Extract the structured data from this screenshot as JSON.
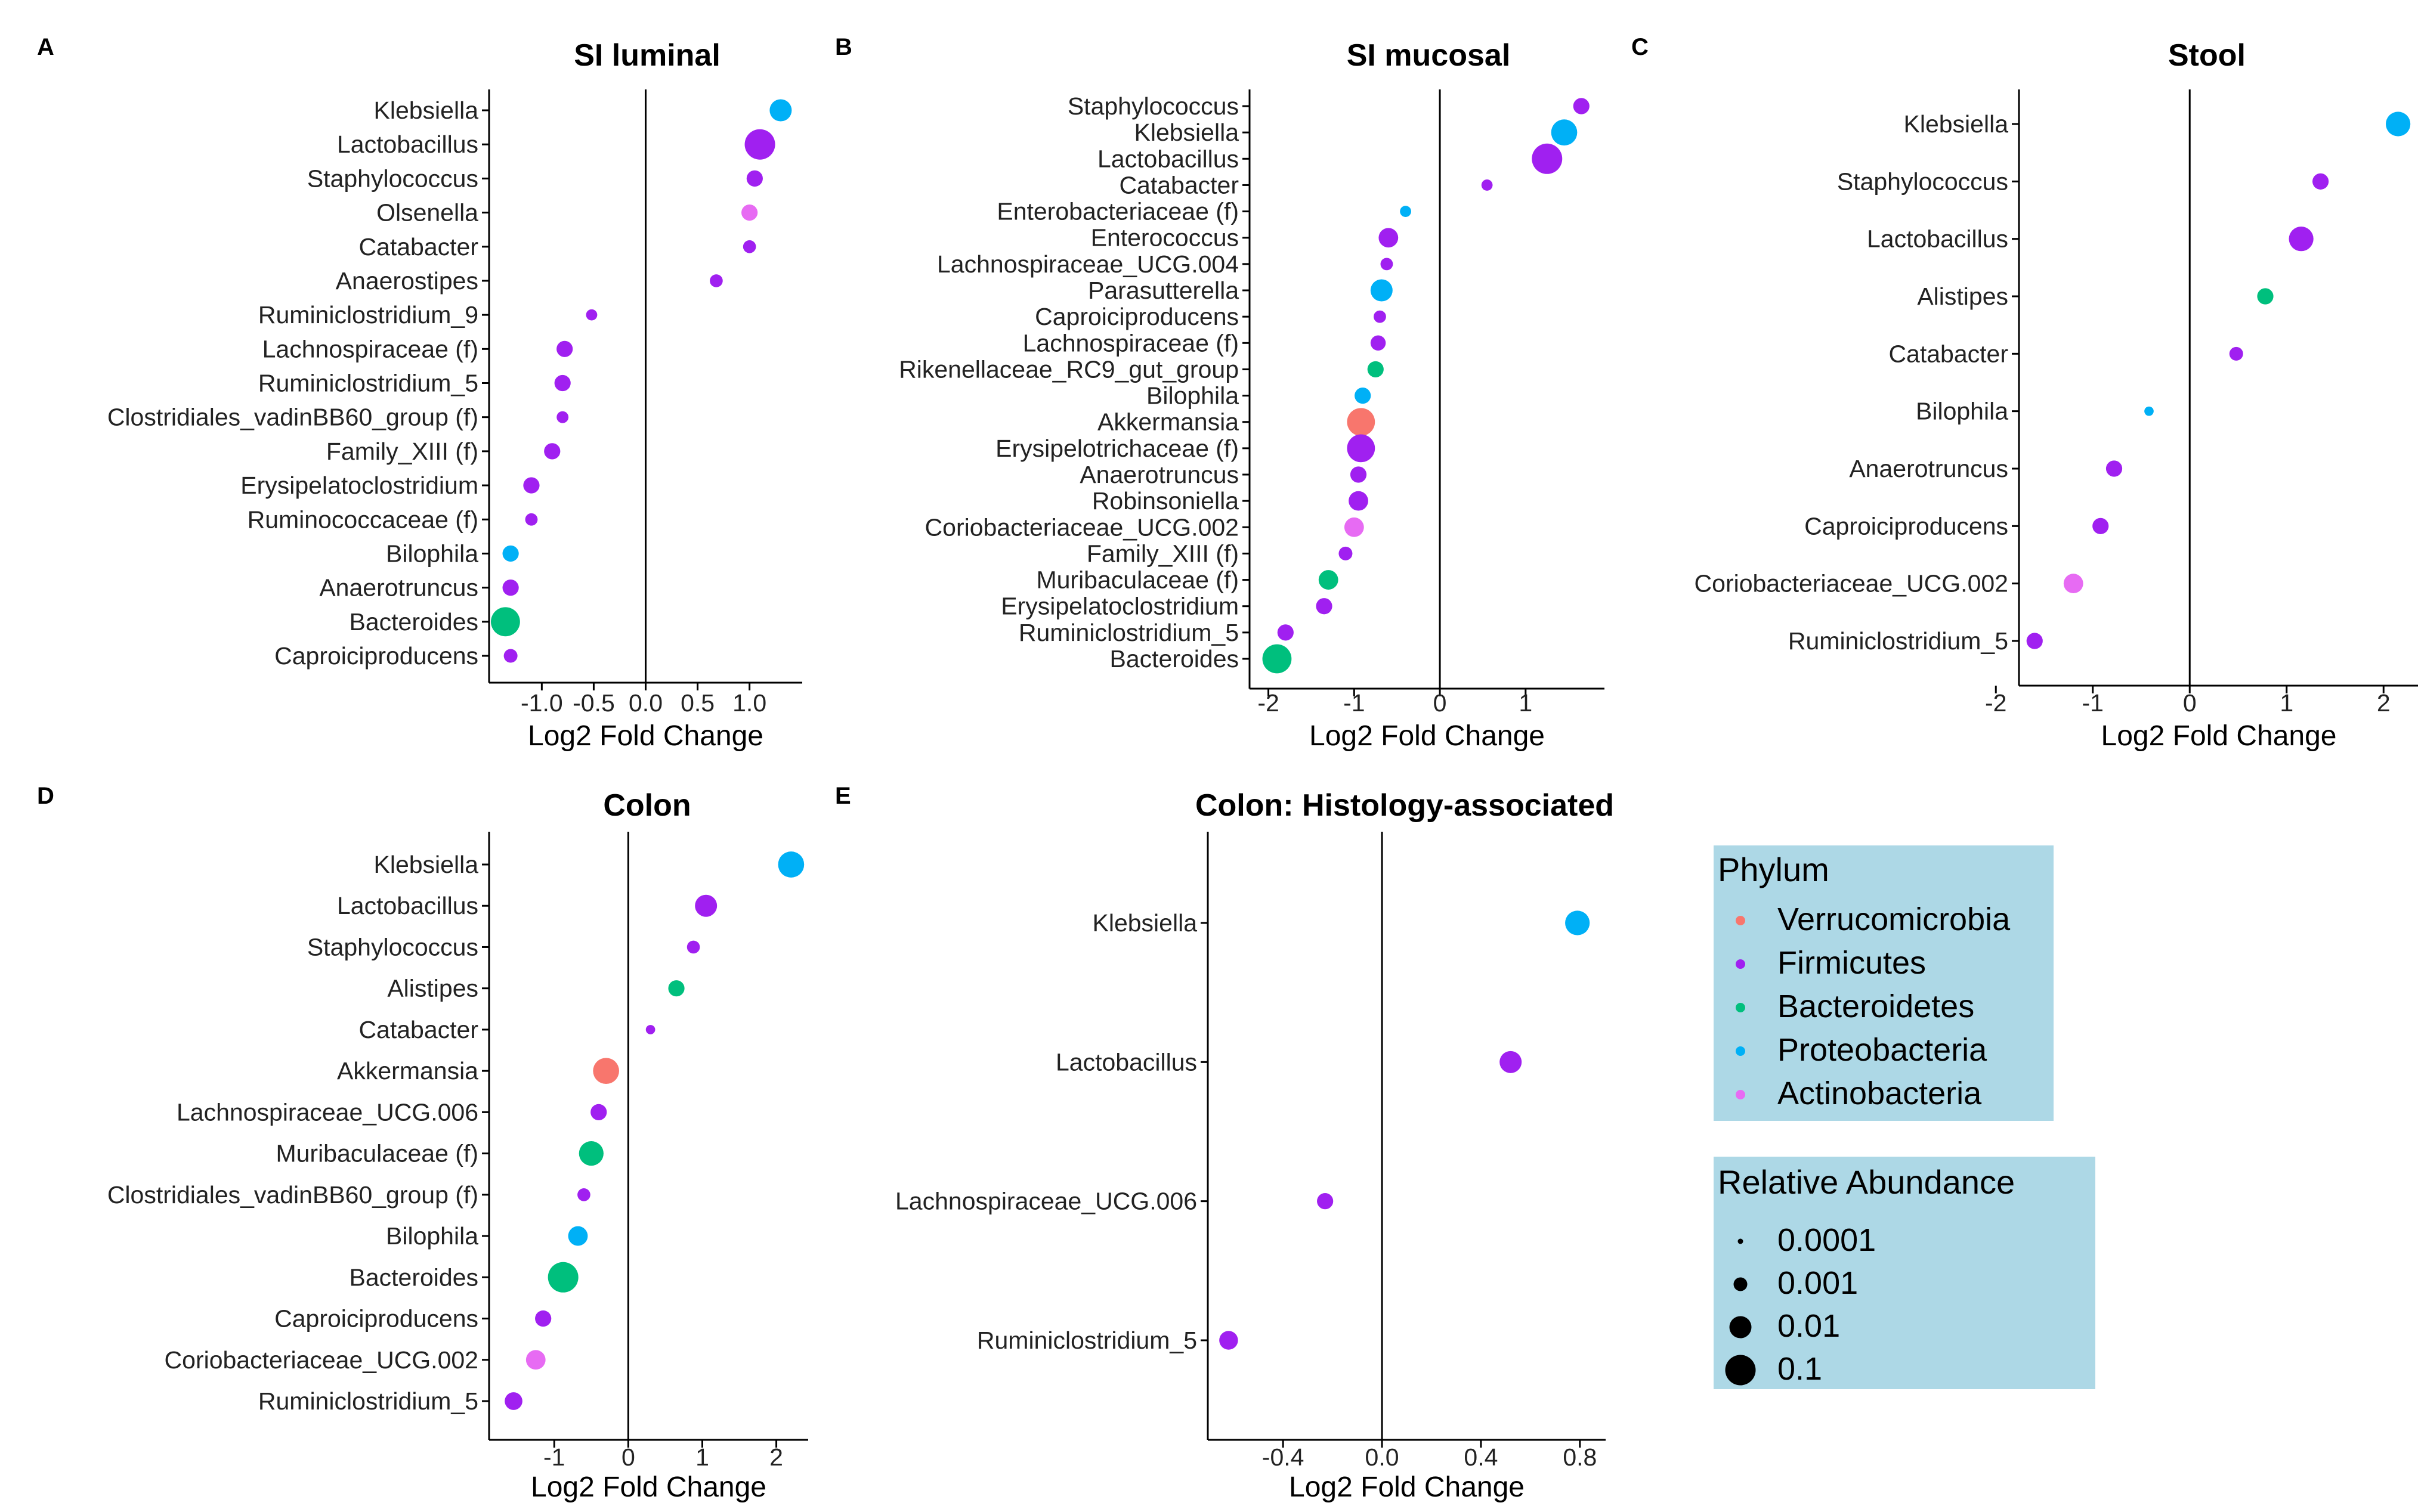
{
  "colors": {
    "Verrucomicrobia": "#f8766d",
    "Firmicutes": "#a020f0",
    "Bacteroidetes": "#00bf7d",
    "Proteobacteria": "#00b0f6",
    "Actinobacteria": "#e76bf3",
    "legend_bg": "#add8e6"
  },
  "xlabel": "Log2 Fold Change",
  "chart_data": [
    {
      "panel": "A",
      "title": "SI luminal",
      "type": "scatter",
      "xlim": [
        -1.45,
        1.45
      ],
      "xticks": [
        -1.0,
        -0.5,
        0.0,
        0.5,
        1.0
      ],
      "xtick_labels": [
        "-1.0",
        "-0.5",
        "0.0",
        "0.5",
        "1.0"
      ],
      "taxa": [
        "Klebsiella",
        "Lactobacillus",
        "Staphylococcus",
        "Olsenella",
        "Catabacter",
        "Anaerostipes",
        "Ruminiclostridium_9",
        "Lachnospiraceae (f)",
        "Ruminiclostridium_5",
        "Clostridiales_vadinBB60_group (f)",
        "Family_XIII (f)",
        "Erysipelatoclostridium",
        "Ruminococcaceae (f)",
        "Bilophila",
        "Anaerotruncus",
        "Bacteroides",
        "Caproiciproducens"
      ],
      "lfc": [
        1.3,
        1.1,
        1.05,
        1.0,
        1.0,
        0.68,
        -0.52,
        -0.78,
        -0.8,
        -0.8,
        -0.9,
        -1.1,
        -1.1,
        -1.3,
        -1.3,
        -1.35,
        -1.3
      ],
      "phylum": [
        "Proteobacteria",
        "Firmicutes",
        "Firmicutes",
        "Actinobacteria",
        "Firmicutes",
        "Firmicutes",
        "Firmicutes",
        "Firmicutes",
        "Firmicutes",
        "Firmicutes",
        "Firmicutes",
        "Firmicutes",
        "Firmicutes",
        "Proteobacteria",
        "Firmicutes",
        "Bacteroidetes",
        "Firmicutes"
      ],
      "abundance": [
        0.01,
        0.1,
        0.002,
        0.002,
        0.0008,
        0.0008,
        0.0005,
        0.002,
        0.002,
        0.0006,
        0.002,
        0.002,
        0.0007,
        0.002,
        0.002,
        0.07,
        0.001
      ]
    },
    {
      "panel": "B",
      "title": "SI mucosal",
      "type": "scatter",
      "xlim": [
        -2.15,
        1.85
      ],
      "xticks": [
        -2,
        -1,
        0,
        1
      ],
      "xtick_labels": [
        "-2",
        "-1",
        "0",
        "1"
      ],
      "taxa": [
        "Staphylococcus",
        "Klebsiella",
        "Lactobacillus",
        "Catabacter",
        "Enterobacteriaceae (f)",
        "Enterococcus",
        "Lachnospiraceae_UCG.004",
        "Parasutterella",
        "Caproiciproducens",
        "Lachnospiraceae (f)",
        "Rikenellaceae_RC9_gut_group",
        "Bilophila",
        "Akkermansia",
        "Erysipelotrichaceae (f)",
        "Anaerotruncus",
        "Robinsoniella",
        "Coriobacteriaceae_UCG.002",
        "Family_XIII (f)",
        "Muribaculaceae (f)",
        "Erysipelatoclostridium",
        "Ruminiclostridium_5",
        "Bacteroides"
      ],
      "lfc": [
        1.65,
        1.45,
        1.25,
        0.55,
        -0.4,
        -0.6,
        -0.62,
        -0.68,
        -0.7,
        -0.72,
        -0.75,
        -0.9,
        -0.92,
        -0.92,
        -0.95,
        -0.95,
        -1.0,
        -1.1,
        -1.3,
        -1.35,
        -1.8,
        -1.9
      ],
      "phylum": [
        "Firmicutes",
        "Proteobacteria",
        "Firmicutes",
        "Firmicutes",
        "Proteobacteria",
        "Firmicutes",
        "Firmicutes",
        "Proteobacteria",
        "Firmicutes",
        "Firmicutes",
        "Bacteroidetes",
        "Proteobacteria",
        "Verrucomicrobia",
        "Firmicutes",
        "Firmicutes",
        "Firmicutes",
        "Actinobacteria",
        "Firmicutes",
        "Bacteroidetes",
        "Firmicutes",
        "Firmicutes",
        "Bacteroidetes"
      ],
      "abundance": [
        0.002,
        0.03,
        0.1,
        0.0005,
        0.0005,
        0.005,
        0.0007,
        0.01,
        0.0007,
        0.0015,
        0.002,
        0.002,
        0.05,
        0.05,
        0.002,
        0.005,
        0.005,
        0.001,
        0.005,
        0.002,
        0.002,
        0.07
      ]
    },
    {
      "panel": "C",
      "title": "Stool",
      "type": "scatter",
      "xlim": [
        -1.7,
        2.3
      ],
      "xticks": [
        -2,
        -1,
        0,
        1,
        2
      ],
      "xtick_labels": [
        "-2",
        "-1",
        "0",
        "1",
        "2"
      ],
      "taxa": [
        "Klebsiella",
        "Staphylococcus",
        "Lactobacillus",
        "Alistipes",
        "Catabacter",
        "Bilophila",
        "Anaerotruncus",
        "Caproiciproducens",
        "Coriobacteriaceae_UCG.002",
        "Ruminiclostridium_5"
      ],
      "lfc": [
        2.15,
        1.35,
        1.15,
        0.78,
        0.48,
        -0.42,
        -0.78,
        -0.92,
        -1.2,
        -1.6
      ],
      "phylum": [
        "Proteobacteria",
        "Firmicutes",
        "Firmicutes",
        "Bacteroidetes",
        "Firmicutes",
        "Proteobacteria",
        "Firmicutes",
        "Firmicutes",
        "Actinobacteria",
        "Firmicutes"
      ],
      "abundance": [
        0.02,
        0.002,
        0.02,
        0.002,
        0.001,
        0.0003,
        0.002,
        0.002,
        0.005,
        0.002
      ]
    },
    {
      "panel": "D",
      "title": "Colon",
      "type": "scatter",
      "xlim": [
        -1.8,
        2.35
      ],
      "xticks": [
        -1,
        0,
        1,
        2
      ],
      "xtick_labels": [
        "-1",
        "0",
        "1",
        "2"
      ],
      "taxa": [
        "Klebsiella",
        "Lactobacillus",
        "Staphylococcus",
        "Alistipes",
        "Catabacter",
        "Akkermansia",
        "Lachnospiraceae_UCG.006",
        "Muribaculaceae (f)",
        "Clostridiales_vadinBB60_group (f)",
        "Bilophila",
        "Bacteroides",
        "Caproiciproducens",
        "Coriobacteriaceae_UCG.002",
        "Ruminiclostridium_5"
      ],
      "lfc": [
        2.2,
        1.05,
        0.88,
        0.65,
        0.3,
        -0.3,
        -0.4,
        -0.5,
        -0.6,
        -0.68,
        -0.88,
        -1.15,
        -1.25,
        -1.55
      ],
      "phylum": [
        "Proteobacteria",
        "Firmicutes",
        "Firmicutes",
        "Bacteroidetes",
        "Firmicutes",
        "Verrucomicrobia",
        "Firmicutes",
        "Bacteroidetes",
        "Firmicutes",
        "Proteobacteria",
        "Bacteroidetes",
        "Firmicutes",
        "Actinobacteria",
        "Firmicutes"
      ],
      "abundance": [
        0.03,
        0.01,
        0.0008,
        0.002,
        0.0003,
        0.03,
        0.002,
        0.02,
        0.0008,
        0.005,
        0.1,
        0.002,
        0.005,
        0.003
      ]
    },
    {
      "panel": "E",
      "title": "Colon: Histology-associated",
      "type": "scatter",
      "xlim": [
        -0.68,
        0.88
      ],
      "xticks": [
        -0.4,
        0.0,
        0.4,
        0.8
      ],
      "xtick_labels": [
        "-0.4",
        "0.0",
        "0.4",
        "0.8"
      ],
      "taxa": [
        "Klebsiella",
        "Lactobacillus",
        "Lachnospiraceae_UCG.006",
        "Ruminiclostridium_5"
      ],
      "lfc": [
        0.79,
        0.52,
        -0.23,
        -0.62
      ],
      "phylum": [
        "Proteobacteria",
        "Firmicutes",
        "Firmicutes",
        "Firmicutes"
      ],
      "abundance": [
        0.02,
        0.01,
        0.002,
        0.004
      ]
    }
  ],
  "legend": {
    "phylum_title": "Phylum",
    "phyla": [
      "Verrucomicrobia",
      "Firmicutes",
      "Bacteroidetes",
      "Proteobacteria",
      "Actinobacteria"
    ],
    "abundance_title": "Relative Abundance",
    "abundance_labels": [
      "0.0001",
      "0.001",
      "0.01",
      "0.1"
    ],
    "abundance_values": [
      0.0001,
      0.001,
      0.01,
      0.1
    ]
  }
}
